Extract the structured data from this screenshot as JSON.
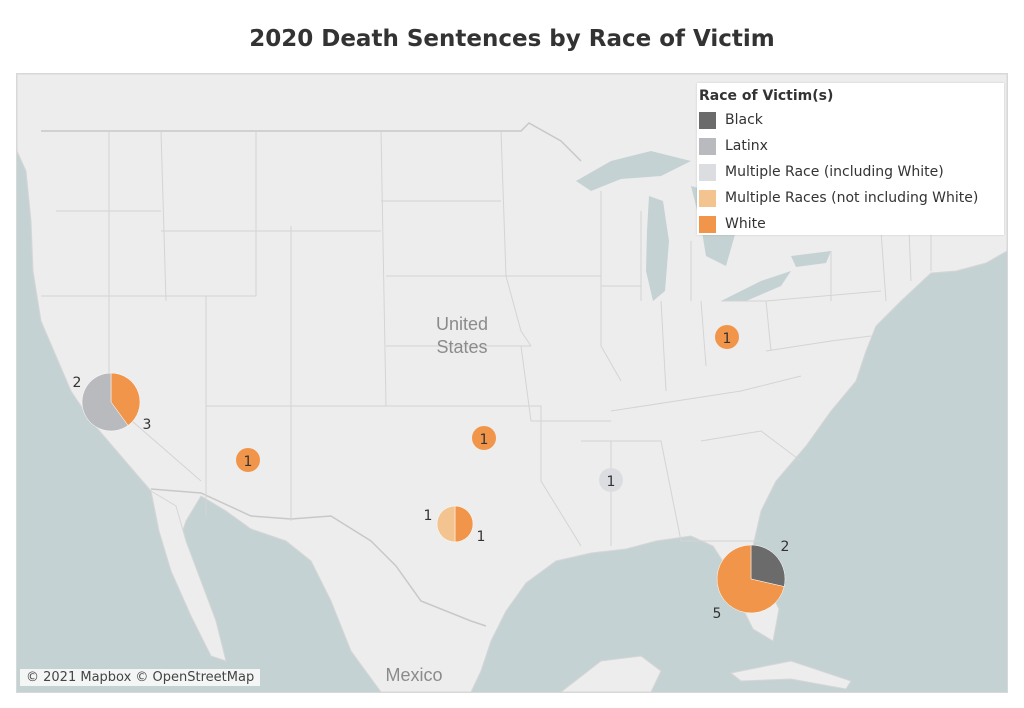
{
  "title": "2020 Death Sentences by Race of Victim",
  "map_labels": {
    "country_line1": "United",
    "country_line2": "States",
    "mexico": "Mexico"
  },
  "attribution": "© 2021 Mapbox © OpenStreetMap",
  "legend": {
    "title": "Race of Victim(s)",
    "items": [
      {
        "label": "Black",
        "color": "#6b6b6b"
      },
      {
        "label": "Latinx",
        "color": "#b9babd"
      },
      {
        "label": "Multiple Race (including White)",
        "color": "#dcdde0"
      },
      {
        "label": "Multiple Races (not including White)",
        "color": "#f3c48f"
      },
      {
        "label": "White",
        "color": "#f0954a"
      }
    ]
  },
  "pies": [
    {
      "name": "california",
      "slices": [
        {
          "race": "White",
          "value": 2
        },
        {
          "race": "Latinx",
          "value": 3
        }
      ]
    },
    {
      "name": "arizona",
      "slices": [
        {
          "race": "White",
          "value": 1
        }
      ]
    },
    {
      "name": "oklahoma",
      "slices": [
        {
          "race": "White",
          "value": 1
        }
      ]
    },
    {
      "name": "texas",
      "slices": [
        {
          "race": "White",
          "value": 1
        },
        {
          "race": "Multiple Races (not including White)",
          "value": 1
        }
      ]
    },
    {
      "name": "mississippi",
      "slices": [
        {
          "race": "Multiple Race (including White)",
          "value": 1
        }
      ]
    },
    {
      "name": "ohio",
      "slices": [
        {
          "race": "White",
          "value": 1
        }
      ]
    },
    {
      "name": "florida",
      "slices": [
        {
          "race": "Black",
          "value": 2
        },
        {
          "race": "White",
          "value": 5
        }
      ]
    }
  ],
  "labels": {
    "ca_white": "2",
    "ca_latinx": "3",
    "az": "1",
    "ok": "1",
    "tx_white": "1",
    "tx_multi": "1",
    "ms": "1",
    "oh": "1",
    "fl_black": "2",
    "fl_white": "5"
  }
}
